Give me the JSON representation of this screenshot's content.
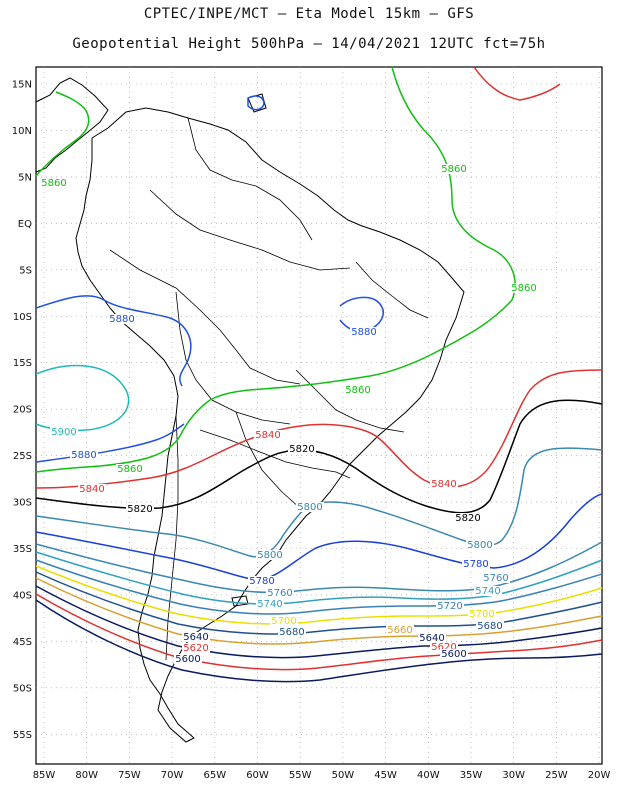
{
  "header": {
    "line1": "CPTEC/INPE/MCT –  Eta Model 15km – GFS",
    "line2": "Geopotential Height 500hPa – 14/04/2021 12UTC fct=75h"
  },
  "map": {
    "lat_ticks": [
      "15N",
      "10N",
      "5N",
      "EQ",
      "5S",
      "10S",
      "15S",
      "20S",
      "25S",
      "30S",
      "35S",
      "40S",
      "45S",
      "50S",
      "55S"
    ],
    "lon_ticks": [
      "85W",
      "80W",
      "75W",
      "70W",
      "65W",
      "60W",
      "55W",
      "50W",
      "45W",
      "40W",
      "35W",
      "30W",
      "25W",
      "20W"
    ],
    "colors": {
      "c5900": "#20b8b8",
      "c5880": "#2050e0",
      "c5860": "#10c010",
      "c5840": "#e03030",
      "c5820": "#000000",
      "c5800": "#3a88b0",
      "c5780": "#1840d8",
      "c5760": "#3a88b0",
      "c5740": "#30a0c0",
      "c5720": "#3880b8",
      "c5700": "#e8e000",
      "c5680": "#1e5090",
      "c5660": "#d8a030",
      "c5640": "#0a1a60",
      "c5620": "#e03030",
      "c5600": "#0a1a60"
    },
    "contour_labels": [
      {
        "id": "l5860a",
        "text": "5860",
        "color": "c5860"
      },
      {
        "id": "l5860b",
        "text": "5860",
        "color": "c5860"
      },
      {
        "id": "l5860c",
        "text": "5860",
        "color": "c5860"
      },
      {
        "id": "l5880a",
        "text": "5880",
        "color": "c5880"
      },
      {
        "id": "l5880b",
        "text": "5880",
        "color": "c5880"
      },
      {
        "id": "l5860d",
        "text": "5860",
        "color": "c5860"
      },
      {
        "id": "l5900",
        "text": "5900",
        "color": "c5900"
      },
      {
        "id": "l5840a",
        "text": "5840",
        "color": "c5840"
      },
      {
        "id": "l5820a",
        "text": "5820",
        "color": "c5820"
      },
      {
        "id": "l5880c",
        "text": "5880",
        "color": "c5880"
      },
      {
        "id": "l5860e",
        "text": "5860",
        "color": "c5860"
      },
      {
        "id": "l5840b",
        "text": "5840",
        "color": "c5840"
      },
      {
        "id": "l5840c",
        "text": "5840",
        "color": "c5840"
      },
      {
        "id": "l5820b",
        "text": "5820",
        "color": "c5820"
      },
      {
        "id": "l5820c",
        "text": "5820",
        "color": "c5820"
      },
      {
        "id": "l5800a",
        "text": "5800",
        "color": "c5800"
      },
      {
        "id": "l5800b",
        "text": "5800",
        "color": "c5800"
      },
      {
        "id": "l5800c",
        "text": "5800",
        "color": "c5800"
      },
      {
        "id": "l5780a",
        "text": "5780",
        "color": "c5780"
      },
      {
        "id": "l5780b",
        "text": "5780",
        "color": "c5780"
      },
      {
        "id": "l5760a",
        "text": "5760",
        "color": "c5760"
      },
      {
        "id": "l5760b",
        "text": "5760",
        "color": "c5760"
      },
      {
        "id": "l5740a",
        "text": "5740",
        "color": "c5740"
      },
      {
        "id": "l5740b",
        "text": "5740",
        "color": "c5740"
      },
      {
        "id": "l5720",
        "text": "5720",
        "color": "c5720"
      },
      {
        "id": "l5700a",
        "text": "5700",
        "color": "c5700"
      },
      {
        "id": "l5700b",
        "text": "5700",
        "color": "c5700"
      },
      {
        "id": "l5680a",
        "text": "5680",
        "color": "c5680"
      },
      {
        "id": "l5680b",
        "text": "5680",
        "color": "c5680"
      },
      {
        "id": "l5660",
        "text": "5660",
        "color": "c5660"
      },
      {
        "id": "l5640a",
        "text": "5640",
        "color": "c5640"
      },
      {
        "id": "l5640b",
        "text": "5640",
        "color": "c5640"
      },
      {
        "id": "l5620a",
        "text": "5620",
        "color": "c5620"
      },
      {
        "id": "l5620b",
        "text": "5620",
        "color": "c5620"
      },
      {
        "id": "l5600a",
        "text": "5600",
        "color": "c5600"
      },
      {
        "id": "l5600b",
        "text": "5600",
        "color": "c5600"
      }
    ]
  }
}
